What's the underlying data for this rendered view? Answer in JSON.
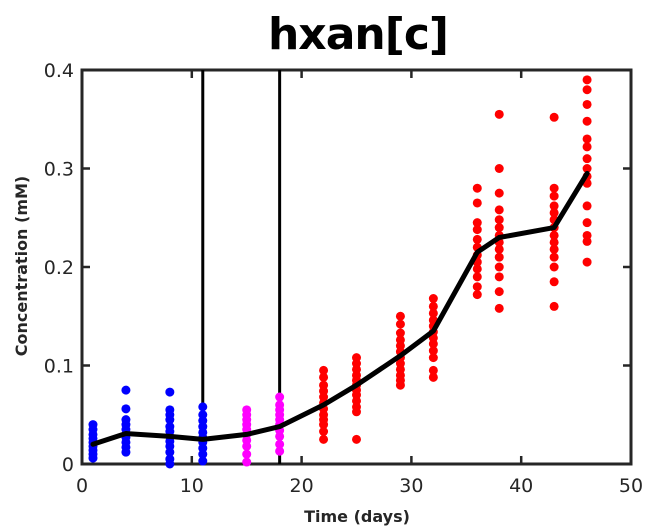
{
  "chart_data": {
    "type": "scatter",
    "title": "hxan[c]",
    "xlabel": "Time (days)",
    "ylabel": "Concentration (mM)",
    "xlim": [
      0,
      50
    ],
    "ylim": [
      0,
      0.4
    ],
    "xticks": [
      "0",
      "10",
      "20",
      "30",
      "40",
      "50"
    ],
    "yticks": [
      "0",
      "0.1",
      "0.2",
      "0.3",
      "0.4"
    ],
    "grid": false,
    "vertical_lines": [
      11,
      18
    ],
    "colors": {
      "phase1": "#0000ff",
      "phase2": "#ff00ff",
      "phase3": "#ff0000",
      "mean": "#000000",
      "vline": "#000000"
    },
    "series": [
      {
        "color": "#0000ff",
        "points": [
          [
            1,
            0.04
          ],
          [
            1,
            0.035
          ],
          [
            1,
            0.03
          ],
          [
            1,
            0.026
          ],
          [
            1,
            0.022
          ],
          [
            1,
            0.018
          ],
          [
            1,
            0.014
          ],
          [
            1,
            0.01
          ],
          [
            1,
            0.006
          ],
          [
            4,
            0.075
          ],
          [
            4,
            0.056
          ],
          [
            4,
            0.045
          ],
          [
            4,
            0.04
          ],
          [
            4,
            0.035
          ],
          [
            4,
            0.03
          ],
          [
            4,
            0.027
          ],
          [
            4,
            0.022
          ],
          [
            4,
            0.017
          ],
          [
            4,
            0.012
          ],
          [
            8,
            0.073
          ],
          [
            8,
            0.055
          ],
          [
            8,
            0.05
          ],
          [
            8,
            0.045
          ],
          [
            8,
            0.038
          ],
          [
            8,
            0.033
          ],
          [
            8,
            0.028
          ],
          [
            8,
            0.023
          ],
          [
            8,
            0.018
          ],
          [
            8,
            0.012
          ],
          [
            8,
            0.005
          ],
          [
            8,
            0.0
          ],
          [
            11,
            0.058
          ],
          [
            11,
            0.05
          ],
          [
            11,
            0.044
          ],
          [
            11,
            0.038
          ],
          [
            11,
            0.032
          ],
          [
            11,
            0.027
          ],
          [
            11,
            0.022
          ],
          [
            11,
            0.016
          ],
          [
            11,
            0.01
          ],
          [
            11,
            0.003
          ]
        ]
      },
      {
        "color": "#ff00ff",
        "points": [
          [
            15,
            0.055
          ],
          [
            15,
            0.05
          ],
          [
            15,
            0.045
          ],
          [
            15,
            0.04
          ],
          [
            15,
            0.035
          ],
          [
            15,
            0.03
          ],
          [
            15,
            0.024
          ],
          [
            15,
            0.018
          ],
          [
            15,
            0.01
          ],
          [
            15,
            0.002
          ],
          [
            18,
            0.068
          ],
          [
            18,
            0.06
          ],
          [
            18,
            0.055
          ],
          [
            18,
            0.05
          ],
          [
            18,
            0.045
          ],
          [
            18,
            0.04
          ],
          [
            18,
            0.034
          ],
          [
            18,
            0.028
          ],
          [
            18,
            0.02
          ],
          [
            18,
            0.013
          ]
        ]
      },
      {
        "color": "#ff0000",
        "points": [
          [
            22,
            0.095
          ],
          [
            22,
            0.088
          ],
          [
            22,
            0.08
          ],
          [
            22,
            0.074
          ],
          [
            22,
            0.068
          ],
          [
            22,
            0.062
          ],
          [
            22,
            0.056
          ],
          [
            22,
            0.05
          ],
          [
            22,
            0.045
          ],
          [
            22,
            0.04
          ],
          [
            22,
            0.033
          ],
          [
            22,
            0.025
          ],
          [
            25,
            0.108
          ],
          [
            25,
            0.102
          ],
          [
            25,
            0.096
          ],
          [
            25,
            0.09
          ],
          [
            25,
            0.085
          ],
          [
            25,
            0.08
          ],
          [
            25,
            0.075
          ],
          [
            25,
            0.07
          ],
          [
            25,
            0.064
          ],
          [
            25,
            0.058
          ],
          [
            25,
            0.053
          ],
          [
            25,
            0.025
          ],
          [
            29,
            0.15
          ],
          [
            29,
            0.142
          ],
          [
            29,
            0.133
          ],
          [
            29,
            0.126
          ],
          [
            29,
            0.12
          ],
          [
            29,
            0.114
          ],
          [
            29,
            0.108
          ],
          [
            29,
            0.102
          ],
          [
            29,
            0.096
          ],
          [
            29,
            0.09
          ],
          [
            29,
            0.085
          ],
          [
            29,
            0.08
          ],
          [
            32,
            0.168
          ],
          [
            32,
            0.16
          ],
          [
            32,
            0.153
          ],
          [
            32,
            0.146
          ],
          [
            32,
            0.14
          ],
          [
            32,
            0.134
          ],
          [
            32,
            0.128
          ],
          [
            32,
            0.122
          ],
          [
            32,
            0.115
          ],
          [
            32,
            0.108
          ],
          [
            32,
            0.095
          ],
          [
            32,
            0.088
          ],
          [
            36,
            0.28
          ],
          [
            36,
            0.265
          ],
          [
            36,
            0.245
          ],
          [
            36,
            0.238
          ],
          [
            36,
            0.228
          ],
          [
            36,
            0.22
          ],
          [
            36,
            0.212
          ],
          [
            36,
            0.205
          ],
          [
            36,
            0.198
          ],
          [
            36,
            0.19
          ],
          [
            36,
            0.18
          ],
          [
            36,
            0.172
          ],
          [
            38,
            0.355
          ],
          [
            38,
            0.3
          ],
          [
            38,
            0.275
          ],
          [
            38,
            0.258
          ],
          [
            38,
            0.248
          ],
          [
            38,
            0.24
          ],
          [
            38,
            0.232
          ],
          [
            38,
            0.225
          ],
          [
            38,
            0.218
          ],
          [
            38,
            0.21
          ],
          [
            38,
            0.2
          ],
          [
            38,
            0.19
          ],
          [
            38,
            0.175
          ],
          [
            38,
            0.158
          ],
          [
            43,
            0.352
          ],
          [
            43,
            0.28
          ],
          [
            43,
            0.272
          ],
          [
            43,
            0.262
          ],
          [
            43,
            0.255
          ],
          [
            43,
            0.248
          ],
          [
            43,
            0.24
          ],
          [
            43,
            0.232
          ],
          [
            43,
            0.225
          ],
          [
            43,
            0.218
          ],
          [
            43,
            0.21
          ],
          [
            43,
            0.2
          ],
          [
            43,
            0.185
          ],
          [
            43,
            0.16
          ],
          [
            46,
            0.39
          ],
          [
            46,
            0.38
          ],
          [
            46,
            0.365
          ],
          [
            46,
            0.348
          ],
          [
            46,
            0.33
          ],
          [
            46,
            0.322
          ],
          [
            46,
            0.31
          ],
          [
            46,
            0.3
          ],
          [
            46,
            0.292
          ],
          [
            46,
            0.285
          ],
          [
            46,
            0.262
          ],
          [
            46,
            0.245
          ],
          [
            46,
            0.232
          ],
          [
            46,
            0.226
          ],
          [
            46,
            0.205
          ]
        ]
      }
    ],
    "mean_line": {
      "color": "#000000",
      "x": [
        1,
        4,
        8,
        11,
        15,
        18,
        22,
        25,
        29,
        32,
        36,
        38,
        43,
        46
      ],
      "y": [
        0.02,
        0.031,
        0.028,
        0.025,
        0.03,
        0.038,
        0.06,
        0.08,
        0.11,
        0.135,
        0.215,
        0.23,
        0.24,
        0.295
      ]
    }
  }
}
